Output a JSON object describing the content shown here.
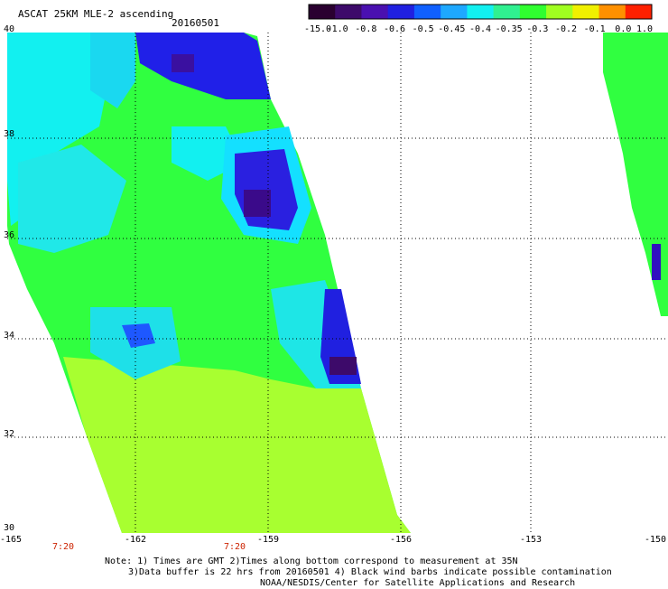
{
  "header": {
    "title": "ASCAT 25KM MLE-2 ascending",
    "date": "20160501"
  },
  "colorbar": {
    "labels": [
      "-15.0",
      "-1.0",
      "-0.8",
      "-0.6",
      "-0.5",
      "-0.45",
      "-0.4",
      "-0.35",
      "-0.3",
      "-0.2",
      "-0.1",
      "0.0",
      "1.0"
    ],
    "colors": [
      "#2a0030",
      "#3d0a6a",
      "#4a10b0",
      "#2020e0",
      "#1060ff",
      "#1ea8ff",
      "#12f0f0",
      "#30f090",
      "#30ff30",
      "#a0ff20",
      "#f0f000",
      "#ff9000",
      "#ff2000"
    ]
  },
  "map": {
    "lat_labels": [
      "40",
      "38",
      "36",
      "34",
      "32",
      "30"
    ],
    "lon_labels": [
      "-165",
      "-162",
      "-159",
      "-156",
      "-153",
      "-150"
    ],
    "time_labels": [
      "7:20",
      "7:20"
    ]
  },
  "footer": {
    "note1": "Note: 1) Times are GMT 2)Times along bottom correspond to measurement at 35N",
    "note2": "3)Data buffer is 22 hrs from 20160501 4) Black wind barbs indicate possible contamination",
    "credit": "NOAA/NESDIS/Center for Satellite Applications and Research"
  }
}
